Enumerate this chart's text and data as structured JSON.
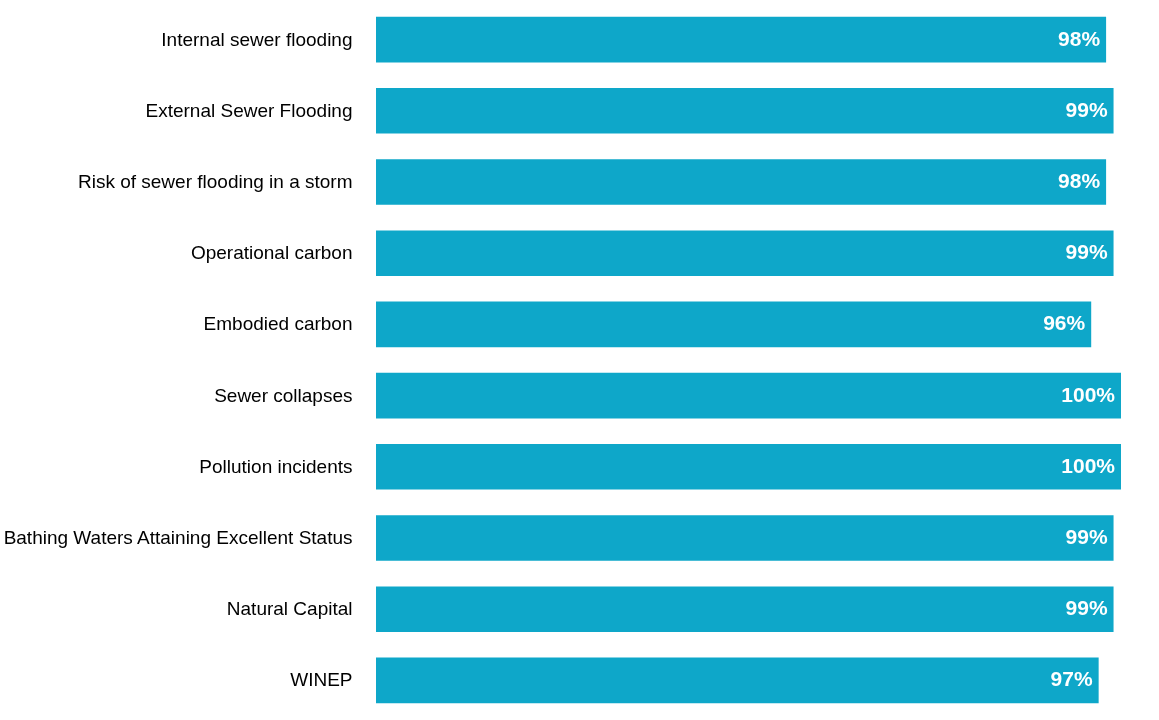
{
  "chart_data": {
    "type": "bar",
    "orientation": "horizontal",
    "categories": [
      "Internal sewer flooding",
      "External Sewer Flooding",
      "Risk of sewer flooding in a storm",
      "Operational carbon",
      "Embodied carbon",
      "Sewer collapses",
      "Pollution incidents",
      "Bathing Waters Attaining Excellent Status",
      "Natural Capital",
      "WINEP"
    ],
    "values": [
      98,
      99,
      98,
      99,
      96,
      100,
      100,
      99,
      99,
      97
    ],
    "value_labels": [
      "98%",
      "99%",
      "98%",
      "99%",
      "96%",
      "100%",
      "100%",
      "99%",
      "99%",
      "97%"
    ],
    "color": "#0ea7c9"
  }
}
